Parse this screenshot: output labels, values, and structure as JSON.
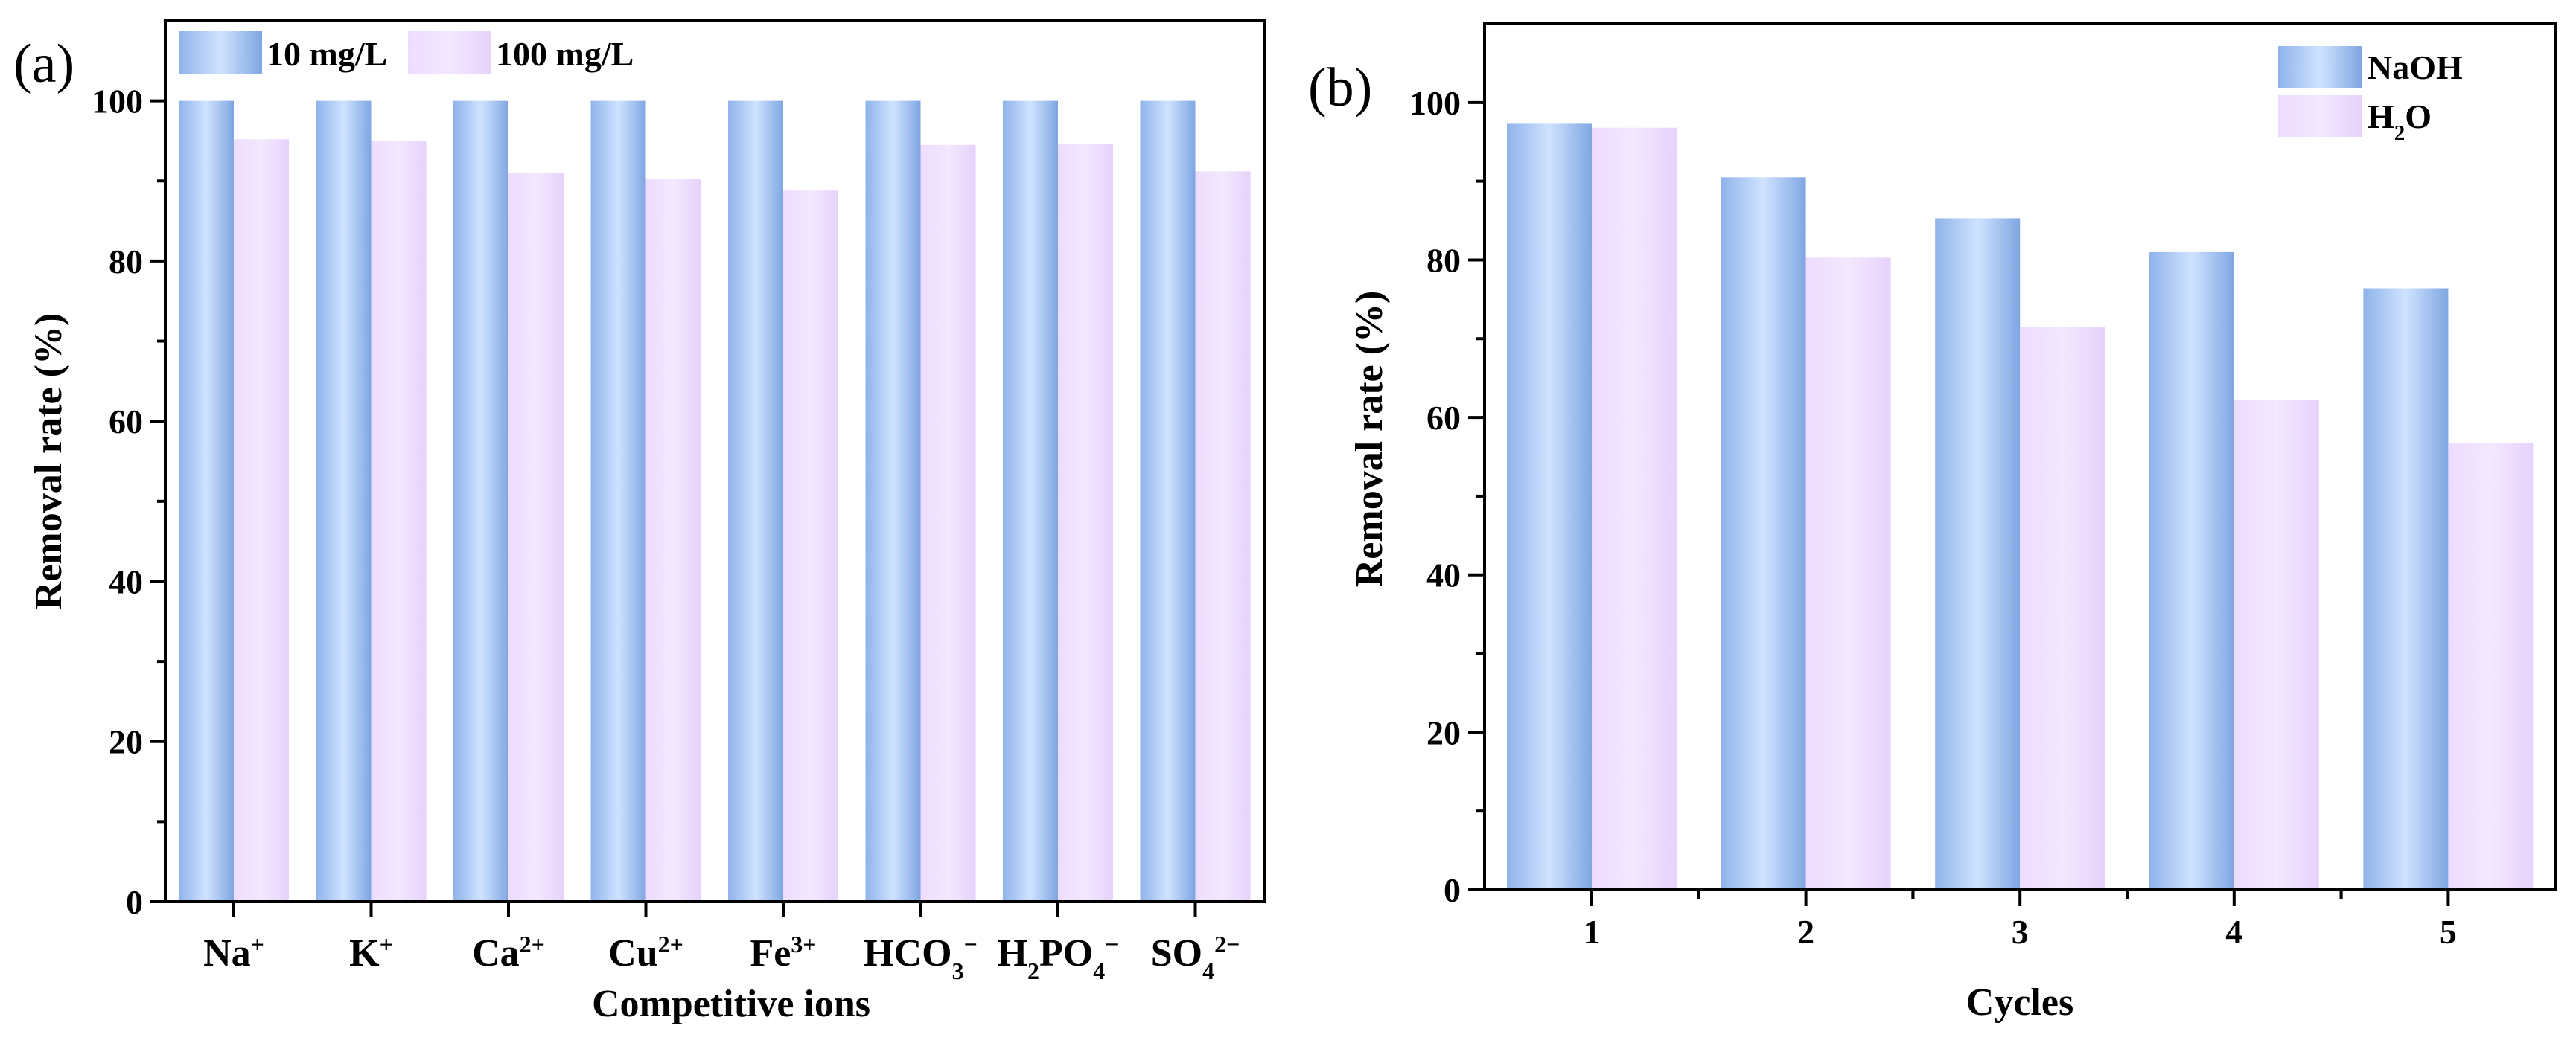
{
  "colors": {
    "series_a_edge": "#8fb3ea",
    "series_a_mid": "#cfe3ff",
    "series_a_edge2": "#7fa6e2",
    "series_b_edge": "#eddcff",
    "series_b_mid": "#f3e8ff",
    "series_b_edge2": "#e6d2fb",
    "axis": "#000000"
  },
  "chart_data": [
    {
      "type": "bar",
      "panel_label": "(a)",
      "categories": [
        "Na+",
        "K+",
        "Ca2+",
        "Cu2+",
        "Fe3+",
        "HCO3−",
        "H2PO4−",
        "SO42−"
      ],
      "category_labels_rich": [
        [
          {
            "t": "Na"
          },
          {
            "t": "+",
            "s": "sup"
          }
        ],
        [
          {
            "t": "K"
          },
          {
            "t": "+",
            "s": "sup"
          }
        ],
        [
          {
            "t": "Ca"
          },
          {
            "t": "2+",
            "s": "sup"
          }
        ],
        [
          {
            "t": "Cu"
          },
          {
            "t": "2+",
            "s": "sup"
          }
        ],
        [
          {
            "t": "Fe"
          },
          {
            "t": "3+",
            "s": "sup"
          }
        ],
        [
          {
            "t": "HCO"
          },
          {
            "t": "3",
            "s": "sub"
          },
          {
            "t": "−",
            "s": "sup"
          }
        ],
        [
          {
            "t": "H"
          },
          {
            "t": "2",
            "s": "sub"
          },
          {
            "t": "PO"
          },
          {
            "t": "4",
            "s": "sub"
          },
          {
            "t": "−",
            "s": "sup"
          }
        ],
        [
          {
            "t": "SO"
          },
          {
            "t": "4",
            "s": "sub"
          },
          {
            "t": "2−",
            "s": "sup"
          }
        ]
      ],
      "series": [
        {
          "name": "10 mg/L",
          "values": [
            100,
            100,
            100,
            100,
            100,
            100,
            100,
            100
          ]
        },
        {
          "name": "100 mg/L",
          "values": [
            95.2,
            95.0,
            91.0,
            90.2,
            88.8,
            94.5,
            94.6,
            91.2
          ]
        }
      ],
      "legend_labels": [
        "10 mg/L",
        "100 mg/L"
      ],
      "legend_position": "top-left",
      "xlabel": "Competitive ions",
      "ylabel": "Removal rate (%)",
      "ylim": [
        0,
        110
      ],
      "yticks": [
        0,
        20,
        40,
        60,
        80,
        100
      ],
      "ytick_labels": [
        "0",
        "20",
        "40",
        "60",
        "80",
        "100"
      ],
      "grid": false
    },
    {
      "type": "bar",
      "panel_label": "(b)",
      "categories": [
        "1",
        "2",
        "3",
        "4",
        "5"
      ],
      "series": [
        {
          "name": "NaOH",
          "values": [
            97.3,
            90.5,
            85.3,
            81.0,
            76.4
          ]
        },
        {
          "name": "H2O",
          "values": [
            96.8,
            80.3,
            71.5,
            62.2,
            56.8
          ]
        }
      ],
      "legend_labels": [
        "NaOH",
        "H2O"
      ],
      "legend_labels_rich": [
        [
          {
            "t": "NaOH"
          }
        ],
        [
          {
            "t": "H"
          },
          {
            "t": "2",
            "s": "sub"
          },
          {
            "t": "O"
          }
        ]
      ],
      "legend_position": "top-right",
      "xlabel": "Cycles",
      "ylabel": "Removal rate (%)",
      "ylim": [
        0,
        110
      ],
      "yticks": [
        0,
        20,
        40,
        60,
        80,
        100
      ],
      "ytick_labels": [
        "0",
        "20",
        "40",
        "60",
        "80",
        "100"
      ],
      "grid": false
    }
  ]
}
